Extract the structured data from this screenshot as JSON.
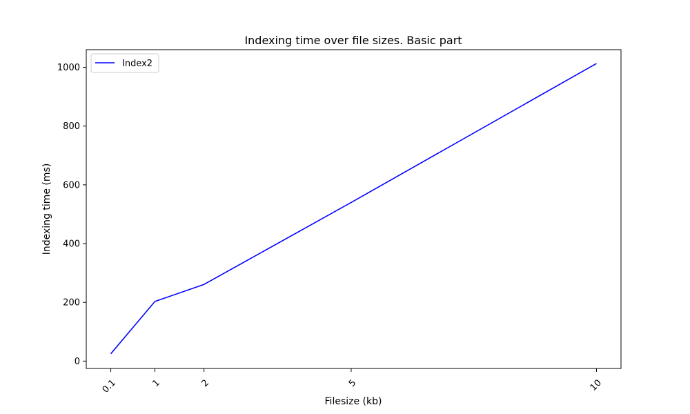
{
  "chart_data": {
    "type": "line",
    "title": "Indexing time over file sizes. Basic part",
    "xlabel": "Filesize (kb)",
    "ylabel": "Indexing time (ms)",
    "x": [
      0.1,
      1,
      2,
      5,
      10
    ],
    "x_tick_labels": [
      "0.1",
      "1",
      "2",
      "5",
      "10"
    ],
    "xlim": [
      -0.4,
      10.5
    ],
    "ylim": [
      -25,
      1060
    ],
    "y_ticks": [
      0,
      200,
      400,
      600,
      800,
      1000
    ],
    "y_tick_labels": [
      "0",
      "200",
      "400",
      "600",
      "800",
      "1000"
    ],
    "grid": false,
    "legend_position": "top-left",
    "series": [
      {
        "name": "Index2",
        "color": "#0000ff",
        "values": [
          25,
          203,
          261,
          540,
          1013
        ]
      }
    ]
  }
}
